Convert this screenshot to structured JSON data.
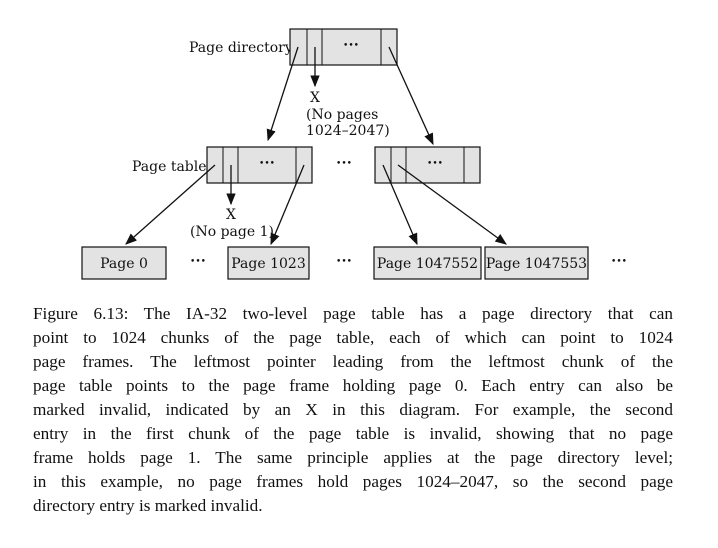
{
  "diagram": {
    "page_directory_label": "Page directory",
    "page_table_label": "Page table",
    "ellipsis": "•••",
    "invalid_marker": "X",
    "no_pages_note": [
      "(No pages",
      "1024–2047)"
    ],
    "no_page_note": "(No page 1)",
    "pages": [
      "Page 0",
      "Page 1023",
      "Page 1047552",
      "Page 1047553"
    ],
    "colors": {
      "box_fill": "#e3e3e3",
      "stroke": "#111111"
    }
  },
  "caption": {
    "lines": [
      "Figure 6.13: The IA-32 two-level page table has a page directory that can",
      "point to 1024 chunks of the page table, each of which can point to 1024",
      "page frames. The leftmost pointer leading from the leftmost chunk of the",
      "page table points to the page frame holding page 0. Each entry can also be",
      "marked invalid, indicated by an X in this diagram. For example, the second",
      "entry in the first chunk of the page table is invalid, showing that no page",
      "frame holds page 1. The same principle applies at the page directory level;",
      "in this example, no page frames hold pages 1024–2047, so the second page",
      "directory entry is marked invalid."
    ]
  }
}
